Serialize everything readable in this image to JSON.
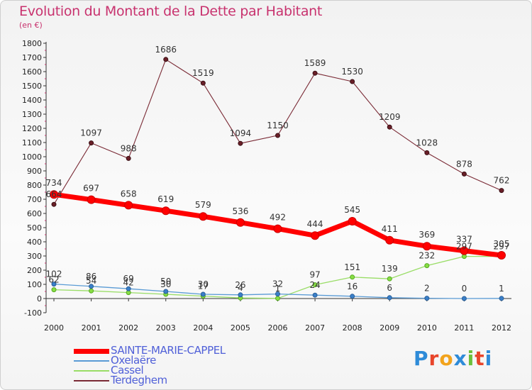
{
  "title": "Evolution du Montant de la Dette par Habitant",
  "subtitle": "(en €)",
  "logo_text": "Proxiti",
  "chart_data": {
    "type": "line",
    "title": "Evolution du Montant de la Dette par Habitant",
    "ylabel": "(en €)",
    "xlabel": "",
    "x": [
      2000,
      2001,
      2002,
      2003,
      2004,
      2005,
      2006,
      2007,
      2008,
      2009,
      2010,
      2011,
      2012
    ],
    "ylim": [
      -100,
      1800
    ],
    "yticks": [
      -100,
      0,
      100,
      200,
      300,
      400,
      500,
      600,
      700,
      800,
      900,
      1000,
      1100,
      1200,
      1300,
      1400,
      1500,
      1600,
      1700,
      1800
    ],
    "grid": false,
    "legend_position": "bottom-left",
    "series": [
      {
        "name": "SAINTE-MARIE-CAPPEL",
        "color": "#ff0000",
        "values": [
          734,
          697,
          658,
          619,
          579,
          536,
          492,
          444,
          545,
          411,
          369,
          337,
          305
        ]
      },
      {
        "name": "Oxelaëre",
        "color": "#5a9bd5",
        "values": [
          102,
          86,
          69,
          50,
          30,
          26,
          32,
          24,
          16,
          6,
          2,
          0,
          1
        ]
      },
      {
        "name": "Cassel",
        "color": "#99dd66",
        "values": [
          62,
          54,
          42,
          30,
          17,
          4,
          1,
          97,
          151,
          139,
          232,
          297,
          297
        ]
      },
      {
        "name": "Terdeghem",
        "color": "#7a2a35",
        "values": [
          664,
          1097,
          988,
          1686,
          1519,
          1094,
          1150,
          1589,
          1530,
          1209,
          1028,
          878,
          762
        ]
      }
    ]
  }
}
